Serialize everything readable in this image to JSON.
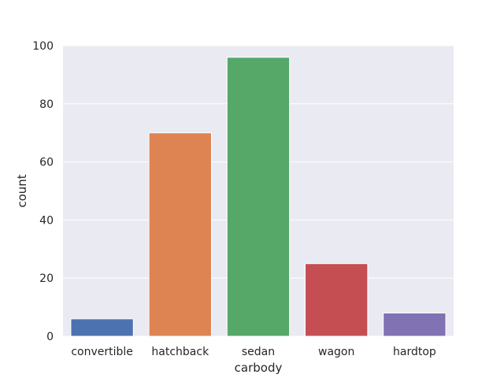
{
  "chart_data": {
    "type": "bar",
    "xlabel": "carbody",
    "ylabel": "count",
    "categories": [
      "convertible",
      "hatchback",
      "sedan",
      "wagon",
      "hardtop"
    ],
    "values": [
      6,
      70,
      96,
      25,
      8
    ],
    "colors": [
      "#4c72b0",
      "#dd8452",
      "#55a868",
      "#c44e52",
      "#8172b3"
    ],
    "ylim": [
      0,
      100
    ],
    "yticks": [
      0,
      20,
      40,
      60,
      80,
      100
    ],
    "grid": true,
    "legend": "none",
    "background": "#eaeaf2"
  }
}
